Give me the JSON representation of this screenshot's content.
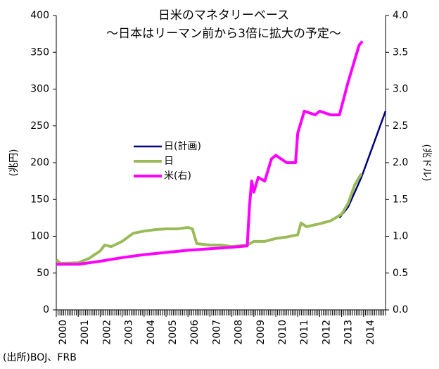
{
  "chart_data": {
    "type": "line",
    "title": "日米のマネタリーベース",
    "subtitle": "～日本はリーマン前から3倍に拡大の予定～",
    "y_label": "(兆円)",
    "y2_label": "(兆ドル)",
    "source": "(出所)BOJ、FRB",
    "xlim": [
      2000,
      2015
    ],
    "xticks": [
      2000,
      2001,
      2002,
      2003,
      2004,
      2005,
      2006,
      2007,
      2008,
      2009,
      2010,
      2011,
      2012,
      2013,
      2014
    ],
    "ylim": [
      0,
      400
    ],
    "yticks": [
      0,
      50,
      100,
      150,
      200,
      250,
      300,
      350,
      400
    ],
    "y2lim": [
      0,
      4
    ],
    "y2ticks": [
      {
        "value": 0,
        "label": "0.0"
      },
      {
        "value": 0.5,
        "label": "0.5"
      },
      {
        "value": 1,
        "label": "1.0"
      },
      {
        "value": 1.5,
        "label": "1.5"
      },
      {
        "value": 2,
        "label": "2.0"
      },
      {
        "value": 2.5,
        "label": "2.5"
      },
      {
        "value": 3,
        "label": "3.0"
      },
      {
        "value": 3.5,
        "label": "3.5"
      },
      {
        "value": 4,
        "label": "4.0"
      }
    ],
    "legend": "center-left",
    "series": [
      {
        "name": "日(計画)",
        "color": "#000080",
        "x": [
          2012.9,
          2013.3,
          2013.9,
          2015
        ],
        "values": [
          125,
          140,
          180,
          270
        ]
      },
      {
        "name": "日",
        "color": "#9bbb59",
        "x": [
          2000,
          2000.2,
          2001,
          2001.5,
          2002,
          2002.2,
          2002.5,
          2003,
          2003.5,
          2004,
          2004.5,
          2005,
          2005.5,
          2006,
          2006.2,
          2006.4,
          2007,
          2007.5,
          2008,
          2008.7,
          2009,
          2009.5,
          2010,
          2010.5,
          2011,
          2011.15,
          2011.4,
          2012,
          2012.5,
          2013,
          2013.3,
          2013.6,
          2013.9
        ],
        "values": [
          68,
          63,
          64,
          70,
          80,
          88,
          86,
          93,
          104,
          107,
          109,
          110,
          110,
          112,
          110,
          90,
          88,
          88,
          86,
          88,
          93,
          93,
          97,
          99,
          102,
          118,
          113,
          117,
          121,
          130,
          145,
          170,
          185
        ]
      },
      {
        "name": "米(右)",
        "color": "#ff00ff",
        "axis": "y2",
        "x": [
          2000,
          2001,
          2002,
          2003,
          2004,
          2005,
          2006,
          2007,
          2008,
          2008.7,
          2008.8,
          2008.9,
          2009,
          2009.2,
          2009.5,
          2009.8,
          2010,
          2010.5,
          2010.9,
          2011,
          2011.3,
          2011.8,
          2012,
          2012.5,
          2012.9,
          2013.3,
          2013.8,
          2013.95
        ],
        "values": [
          0.62,
          0.62,
          0.66,
          0.71,
          0.75,
          0.78,
          0.81,
          0.83,
          0.85,
          0.87,
          1.4,
          1.75,
          1.6,
          1.8,
          1.75,
          2.05,
          2.1,
          2.0,
          2.0,
          2.4,
          2.7,
          2.65,
          2.7,
          2.65,
          2.65,
          3.1,
          3.6,
          3.65
        ]
      }
    ]
  }
}
